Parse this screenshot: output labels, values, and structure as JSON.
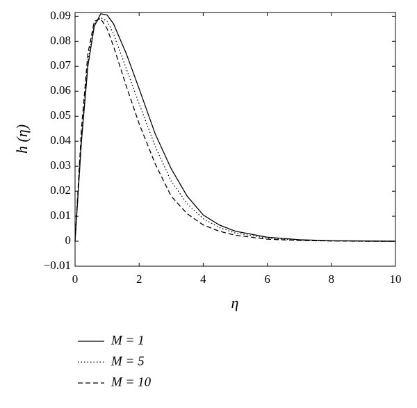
{
  "chart_data": {
    "type": "line",
    "xlabel": "η",
    "ylabel": "h (η)",
    "x": [
      0,
      0.2,
      0.4,
      0.6,
      0.8,
      1,
      1.2,
      1.4,
      1.6,
      2,
      2.5,
      3,
      3.5,
      4,
      4.5,
      5,
      6,
      7,
      8,
      9,
      10
    ],
    "series": [
      {
        "name": "M = 1",
        "color": "#000000",
        "dash": "solid",
        "values": [
          0,
          0.04,
          0.07,
          0.086,
          0.091,
          0.0905,
          0.087,
          0.081,
          0.075,
          0.061,
          0.043,
          0.029,
          0.018,
          0.0105,
          0.0065,
          0.004,
          0.0016,
          0.0006,
          0.0002,
          0.0001,
          0
        ]
      },
      {
        "name": "M = 5",
        "color": "#000000",
        "dash": "dotted",
        "values": [
          0,
          0.042,
          0.072,
          0.087,
          0.0895,
          0.088,
          0.083,
          0.076,
          0.069,
          0.055,
          0.038,
          0.024,
          0.015,
          0.009,
          0.0055,
          0.0033,
          0.0012,
          0.0004,
          0.0001,
          0,
          0
        ]
      },
      {
        "name": "M = 10",
        "color": "#000000",
        "dash": "dashed",
        "values": [
          0,
          0.045,
          0.075,
          0.088,
          0.089,
          0.085,
          0.078,
          0.07,
          0.062,
          0.047,
          0.031,
          0.018,
          0.011,
          0.0065,
          0.004,
          0.0024,
          0.0008,
          0.0003,
          0.0001,
          0,
          0
        ]
      }
    ],
    "xlim": [
      0,
      10
    ],
    "xticks": [
      0,
      2,
      4,
      6,
      8,
      10
    ],
    "ylim": [
      -0.01,
      0.0915
    ],
    "yticks": [
      {
        "value": -0.01,
        "label": "−0.01"
      },
      0,
      0.01,
      0.02,
      0.03,
      0.04,
      0.05,
      0.06,
      0.07,
      0.08,
      0.09
    ],
    "legend": "bottom"
  }
}
